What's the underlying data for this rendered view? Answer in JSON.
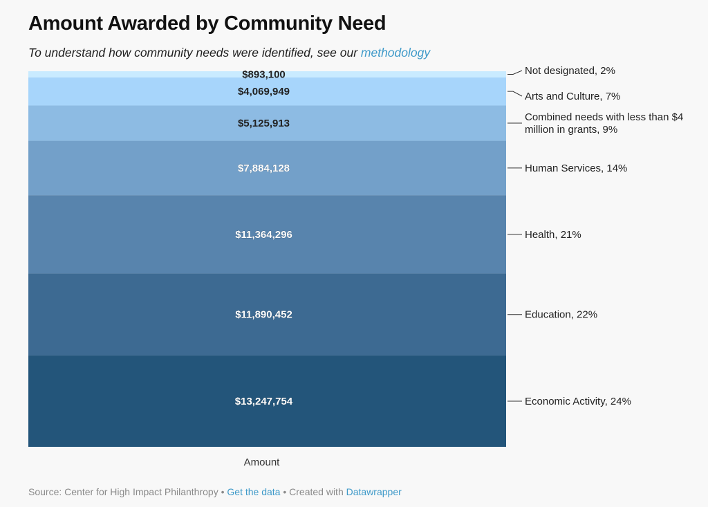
{
  "title": "Amount Awarded by Community Need",
  "subtitle": {
    "text": "To understand how community needs were identified, see our ",
    "link": "methodology"
  },
  "footer": {
    "source": "Source: Center for High Impact Philanthropy",
    "sep1": " • ",
    "get_data": "Get the data",
    "sep2": " • Created with ",
    "tool": "Datawrapper"
  },
  "colors": {
    "link": "#3f9ac9"
  },
  "chart_data": {
    "type": "bar",
    "stacked": "100%",
    "categories": [
      "Amount"
    ],
    "series": [
      {
        "name": "Economic Activity",
        "percent": "24%",
        "values": [
          13247754
        ],
        "label": "$13,247,754",
        "color": "#23557a"
      },
      {
        "name": "Education",
        "percent": "22%",
        "values": [
          11890452
        ],
        "label": "$11,890,452",
        "color": "#3d6a92"
      },
      {
        "name": "Health",
        "percent": "21%",
        "values": [
          11364296
        ],
        "label": "$11,364,296",
        "color": "#5884ad"
      },
      {
        "name": "Human Services",
        "percent": "14%",
        "values": [
          7884128
        ],
        "label": "$7,884,128",
        "color": "#73a0c9"
      },
      {
        "name": "Combined needs with less than $4 million in grants",
        "percent": "9%",
        "values": [
          5125913
        ],
        "label": "$5,125,913",
        "color": "#8dbbe3"
      },
      {
        "name": "Arts and Culture",
        "percent": "7%",
        "values": [
          4069949
        ],
        "label": "$4,069,949",
        "color": "#a7d5fb"
      },
      {
        "name": "Not designated",
        "percent": "2%",
        "values": [
          893100
        ],
        "label": "$893,100",
        "color": "#c9ebff"
      }
    ],
    "xlabel": "Amount",
    "legend": "right-side labels"
  }
}
